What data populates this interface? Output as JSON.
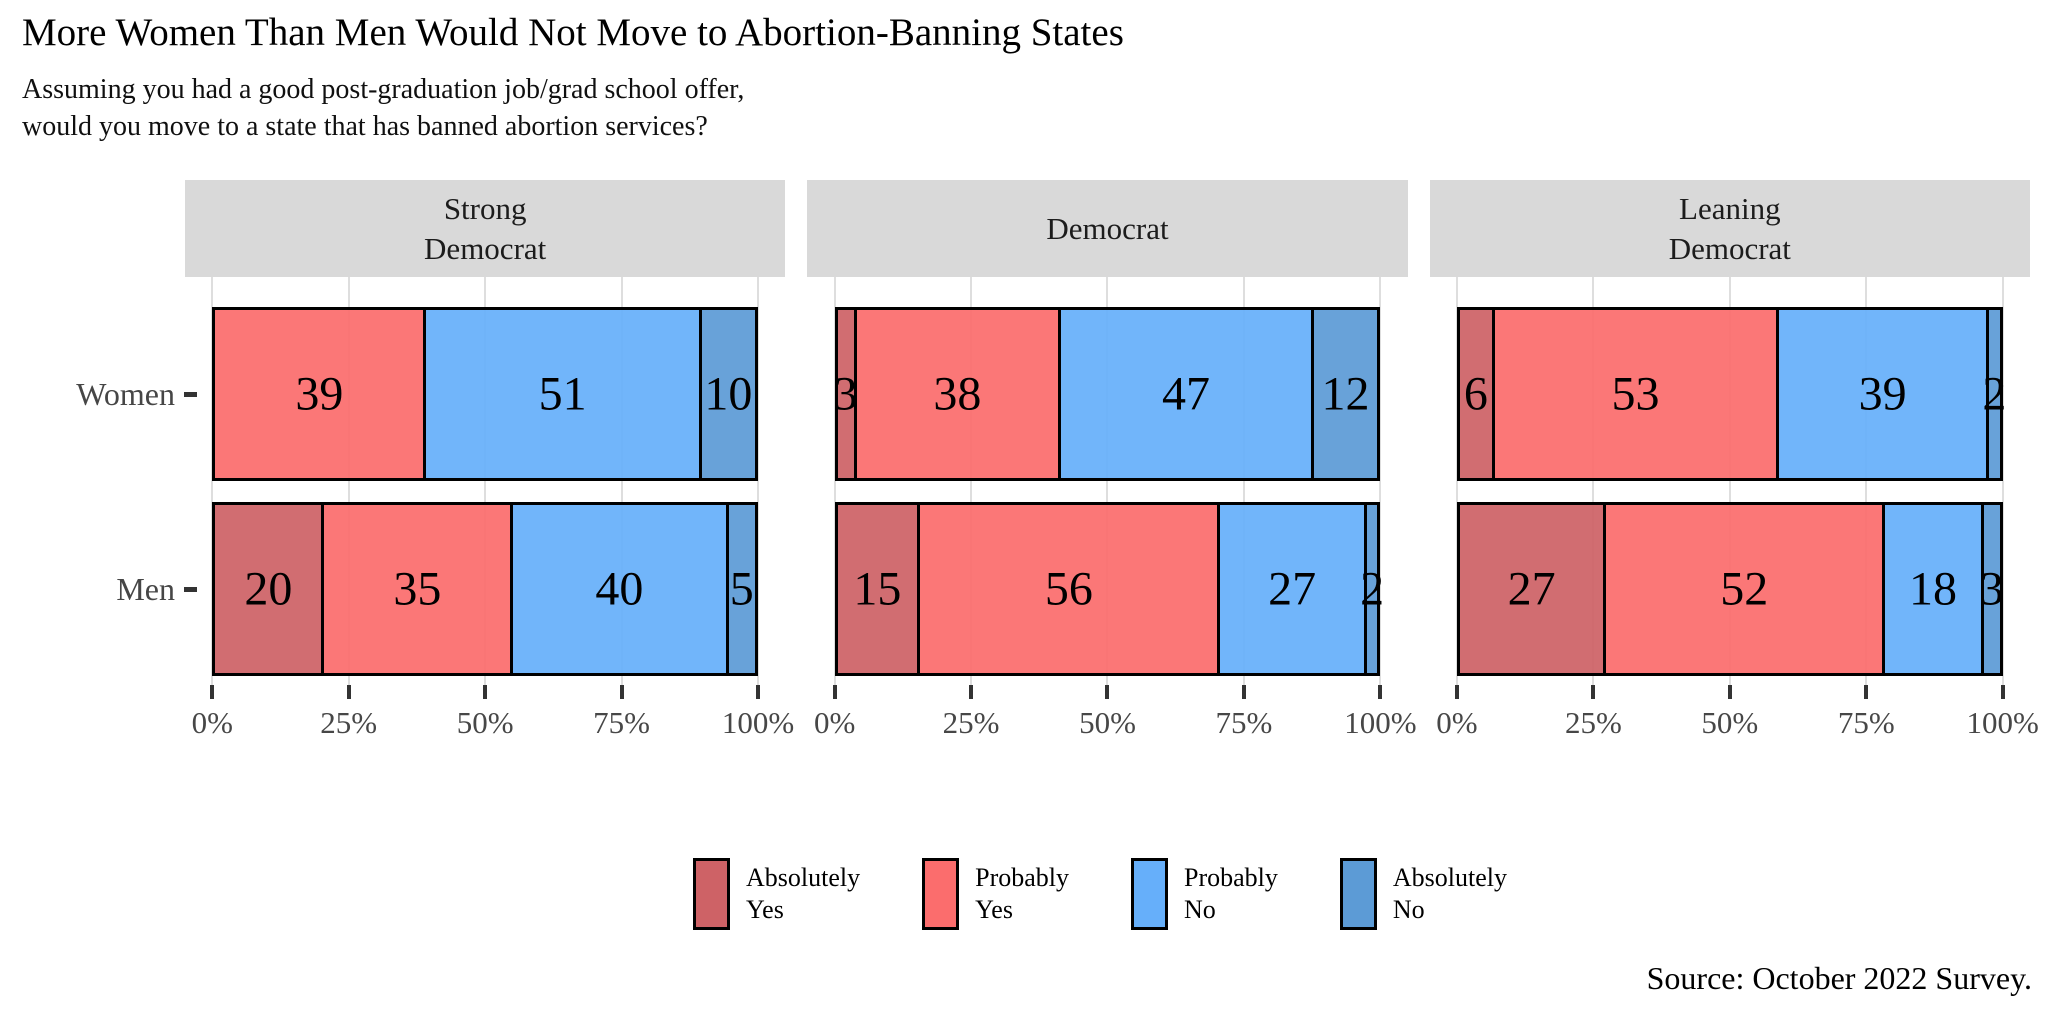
{
  "title": "More Women Than Men Would Not Move to Abortion-Banning States",
  "subtitle": "Assuming you had a good post-graduation job/grad school offer,\nwould you move to a state that has banned abortion services?",
  "source": "Source: October 2022 Survey.",
  "colors": {
    "strip_bg": "#D9D9D9",
    "grid": "#DEDEDE",
    "axis_text": "#474747",
    "bar_border": "#000000"
  },
  "chart_data": {
    "type": "bar",
    "variant": "horizontal-stacked-percent-faceted",
    "grid": true,
    "legend_position": "bottom",
    "value_labels_shown": true,
    "x_range": [
      0,
      100
    ],
    "x_ticks": [
      "0%",
      "25%",
      "50%",
      "75%",
      "100%"
    ],
    "x_tick_values": [
      0,
      25,
      50,
      75,
      100
    ],
    "rows": [
      "Women",
      "Men"
    ],
    "categories": [
      {
        "name": "Absolutely Yes",
        "legend_label": "Absolutely\nYes",
        "color": "#CE6266"
      },
      {
        "name": "Probably Yes",
        "legend_label": "Probably\nYes",
        "color": "#FB6D6D"
      },
      {
        "name": "Probably No",
        "legend_label": "Probably\nNo",
        "color": "#66AFFA"
      },
      {
        "name": "Absolutely No",
        "legend_label": "Absolutely\nNo",
        "color": "#5C9BD6"
      }
    ],
    "facets": [
      {
        "label": "Strong\nDemocrat",
        "series": [
          {
            "row": "Women",
            "values": [
              0,
              39,
              51,
              10
            ]
          },
          {
            "row": "Men",
            "values": [
              20,
              35,
              40,
              5
            ]
          }
        ]
      },
      {
        "label": "Democrat",
        "series": [
          {
            "row": "Women",
            "values": [
              3,
              38,
              47,
              12
            ]
          },
          {
            "row": "Men",
            "values": [
              15,
              56,
              27,
              2
            ]
          }
        ]
      },
      {
        "label": "Leaning\nDemocrat",
        "series": [
          {
            "row": "Women",
            "values": [
              6,
              53,
              39,
              2
            ]
          },
          {
            "row": "Men",
            "values": [
              27,
              52,
              18,
              3
            ]
          }
        ]
      }
    ]
  }
}
